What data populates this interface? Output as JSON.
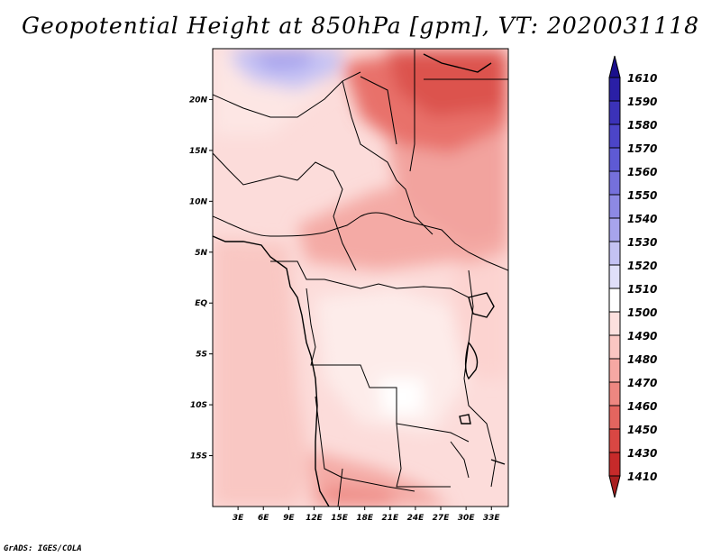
{
  "title": "Geopotential Height at 850hPa [gpm], VT: 2020031118",
  "credit": "GrADS: IGES/COLA",
  "map": {
    "lon_range": [
      0,
      35
    ],
    "lat_range": [
      -20,
      25
    ],
    "lon_ticks": [
      {
        "value": 3,
        "label": "3E"
      },
      {
        "value": 6,
        "label": "6E"
      },
      {
        "value": 9,
        "label": "9E"
      },
      {
        "value": 12,
        "label": "12E"
      },
      {
        "value": 15,
        "label": "15E"
      },
      {
        "value": 18,
        "label": "18E"
      },
      {
        "value": 21,
        "label": "21E"
      },
      {
        "value": 24,
        "label": "24E"
      },
      {
        "value": 27,
        "label": "27E"
      },
      {
        "value": 30,
        "label": "30E"
      },
      {
        "value": 33,
        "label": "33E"
      }
    ],
    "lat_ticks": [
      {
        "value": 20,
        "label": "20N"
      },
      {
        "value": 15,
        "label": "15N"
      },
      {
        "value": 10,
        "label": "10N"
      },
      {
        "value": 5,
        "label": "5N"
      },
      {
        "value": 0,
        "label": "EQ"
      },
      {
        "value": -5,
        "label": "5S"
      },
      {
        "value": -10,
        "label": "10S"
      },
      {
        "value": -15,
        "label": "15S"
      }
    ]
  },
  "colorbar": {
    "levels": [
      {
        "label": "1610",
        "color": "#1a0f8c"
      },
      {
        "label": "1590",
        "color": "#2a1fa6"
      },
      {
        "label": "1580",
        "color": "#3b32b8"
      },
      {
        "label": "1570",
        "color": "#4c45c8"
      },
      {
        "label": "1560",
        "color": "#5e5ad4"
      },
      {
        "label": "1550",
        "color": "#7570dc"
      },
      {
        "label": "1540",
        "color": "#8d89e4"
      },
      {
        "label": "1530",
        "color": "#a7a4ec"
      },
      {
        "label": "1520",
        "color": "#c4c2f3"
      },
      {
        "label": "1510",
        "color": "#e0dff9"
      },
      {
        "label": "1500",
        "color": "#ffffff"
      },
      {
        "label": "1490",
        "color": "#fde0de"
      },
      {
        "label": "1480",
        "color": "#fbc6c2"
      },
      {
        "label": "1470",
        "color": "#f6a8a3"
      },
      {
        "label": "1460",
        "color": "#ee8781"
      },
      {
        "label": "1450",
        "color": "#e4655f"
      },
      {
        "label": "1430",
        "color": "#d94743"
      },
      {
        "label": "1410",
        "color": "#c62a2a"
      }
    ],
    "bottom_color": "#a81f1f"
  }
}
